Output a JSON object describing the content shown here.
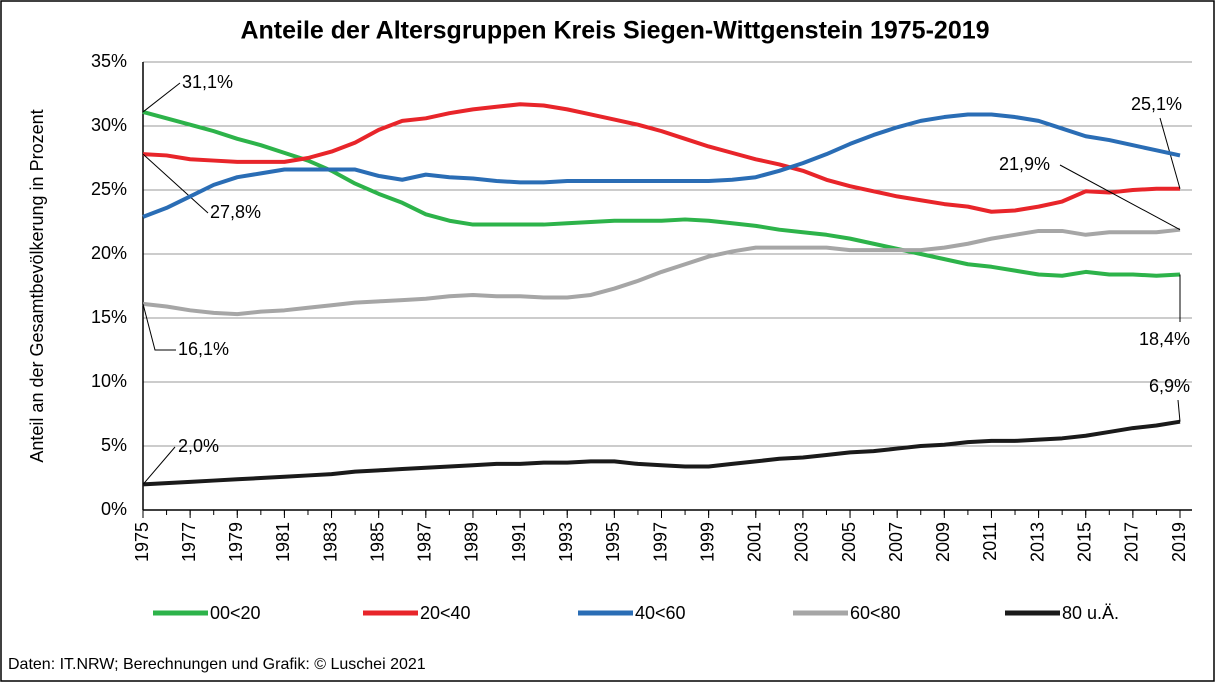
{
  "chart_data": {
    "type": "line",
    "title": "Anteile der Altersgruppen Kreis Siegen-Wittgenstein 1975-2019",
    "y_label": "Anteil an der Gesamtbevölkerung in Prozent",
    "source": "Daten: IT.NRW; Berechnungen und Grafik: © Luschei 2021",
    "x": [
      1975,
      1976,
      1977,
      1978,
      1979,
      1980,
      1981,
      1982,
      1983,
      1984,
      1985,
      1986,
      1987,
      1988,
      1989,
      1990,
      1991,
      1992,
      1993,
      1994,
      1995,
      1996,
      1997,
      1998,
      1999,
      2000,
      2001,
      2002,
      2003,
      2004,
      2005,
      2006,
      2007,
      2008,
      2009,
      2010,
      2011,
      2012,
      2013,
      2014,
      2015,
      2016,
      2017,
      2018,
      2019
    ],
    "xlim": [
      1975,
      2019
    ],
    "xticks": [
      1975,
      1977,
      1979,
      1981,
      1983,
      1985,
      1987,
      1989,
      1991,
      1993,
      1995,
      1997,
      1999,
      2001,
      2003,
      2005,
      2007,
      2009,
      2011,
      2013,
      2015,
      2017,
      2019
    ],
    "ylim": [
      0,
      35
    ],
    "yticks": [
      {
        "value": 0,
        "label": "0%"
      },
      {
        "value": 5,
        "label": "5%"
      },
      {
        "value": 10,
        "label": "10%"
      },
      {
        "value": 15,
        "label": "15%"
      },
      {
        "value": 20,
        "label": "20%"
      },
      {
        "value": 25,
        "label": "25%"
      },
      {
        "value": 30,
        "label": "30%"
      },
      {
        "value": 35,
        "label": "35%"
      }
    ],
    "grid": true,
    "legend": "bottom",
    "series": [
      {
        "name": "00<20",
        "color": "#2db34a",
        "values": [
          31.1,
          30.6,
          30.1,
          29.6,
          29.0,
          28.5,
          27.9,
          27.3,
          26.5,
          25.5,
          24.7,
          24.0,
          23.1,
          22.6,
          22.3,
          22.3,
          22.3,
          22.3,
          22.4,
          22.5,
          22.6,
          22.6,
          22.6,
          22.7,
          22.6,
          22.4,
          22.2,
          21.9,
          21.7,
          21.5,
          21.2,
          20.8,
          20.4,
          20.0,
          19.6,
          19.2,
          19.0,
          18.7,
          18.4,
          18.3,
          18.6,
          18.4,
          18.4,
          18.3,
          18.4
        ],
        "value_labels": [
          "31,1%",
          null,
          null,
          null,
          null,
          null,
          null,
          null,
          null,
          null,
          null,
          null,
          null,
          null,
          null,
          null,
          null,
          null,
          null,
          null,
          null,
          null,
          null,
          null,
          null,
          null,
          null,
          null,
          null,
          null,
          null,
          null,
          null,
          null,
          null,
          null,
          null,
          null,
          null,
          null,
          null,
          null,
          null,
          null,
          "18,4%"
        ]
      },
      {
        "name": "20<40",
        "color": "#e8252a",
        "values": [
          27.8,
          27.7,
          27.4,
          27.3,
          27.2,
          27.2,
          27.2,
          27.5,
          28.0,
          28.7,
          29.7,
          30.4,
          30.6,
          31.0,
          31.3,
          31.5,
          31.7,
          31.6,
          31.3,
          30.9,
          30.5,
          30.1,
          29.6,
          29.0,
          28.4,
          27.9,
          27.4,
          27.0,
          26.5,
          25.8,
          25.3,
          24.9,
          24.5,
          24.2,
          23.9,
          23.7,
          23.3,
          23.4,
          23.7,
          24.1,
          24.9,
          24.8,
          25.0,
          25.1,
          25.1
        ],
        "value_labels": [
          "27,8%",
          null,
          null,
          null,
          null,
          null,
          null,
          null,
          null,
          null,
          null,
          null,
          null,
          null,
          null,
          null,
          null,
          null,
          null,
          null,
          null,
          null,
          null,
          null,
          null,
          null,
          null,
          null,
          null,
          null,
          null,
          null,
          null,
          null,
          null,
          null,
          null,
          null,
          null,
          null,
          null,
          null,
          null,
          null,
          "25,1%"
        ]
      },
      {
        "name": "40<60",
        "color": "#2a6db5",
        "values": [
          22.9,
          23.6,
          24.5,
          25.4,
          26.0,
          26.3,
          26.6,
          26.6,
          26.6,
          26.6,
          26.1,
          25.8,
          26.2,
          26.0,
          25.9,
          25.7,
          25.6,
          25.6,
          25.7,
          25.7,
          25.7,
          25.7,
          25.7,
          25.7,
          25.7,
          25.8,
          26.0,
          26.5,
          27.1,
          27.8,
          28.6,
          29.3,
          29.9,
          30.4,
          30.7,
          30.9,
          30.9,
          30.7,
          30.4,
          29.8,
          29.2,
          28.9,
          28.5,
          28.1,
          27.7
        ]
      },
      {
        "name": "60<80",
        "color": "#a6a6a6",
        "values": [
          16.1,
          15.9,
          15.6,
          15.4,
          15.3,
          15.5,
          15.6,
          15.8,
          16.0,
          16.2,
          16.3,
          16.4,
          16.5,
          16.7,
          16.8,
          16.7,
          16.7,
          16.6,
          16.6,
          16.8,
          17.3,
          17.9,
          18.6,
          19.2,
          19.8,
          20.2,
          20.5,
          20.5,
          20.5,
          20.5,
          20.3,
          20.3,
          20.3,
          20.3,
          20.5,
          20.8,
          21.2,
          21.5,
          21.8,
          21.8,
          21.5,
          21.7,
          21.7,
          21.7,
          21.9
        ],
        "value_labels": [
          "16,1%",
          null,
          null,
          null,
          null,
          null,
          null,
          null,
          null,
          null,
          null,
          null,
          null,
          null,
          null,
          null,
          null,
          null,
          null,
          null,
          null,
          null,
          null,
          null,
          null,
          null,
          null,
          null,
          null,
          null,
          null,
          null,
          null,
          null,
          null,
          null,
          null,
          null,
          null,
          null,
          null,
          null,
          null,
          null,
          "21,9%"
        ]
      },
      {
        "name": "80 u.Ä.",
        "color": "#1a1a1a",
        "values": [
          2.0,
          2.1,
          2.2,
          2.3,
          2.4,
          2.5,
          2.6,
          2.7,
          2.8,
          3.0,
          3.1,
          3.2,
          3.3,
          3.4,
          3.5,
          3.6,
          3.6,
          3.7,
          3.7,
          3.8,
          3.8,
          3.6,
          3.5,
          3.4,
          3.4,
          3.6,
          3.8,
          4.0,
          4.1,
          4.3,
          4.5,
          4.6,
          4.8,
          5.0,
          5.1,
          5.3,
          5.4,
          5.4,
          5.5,
          5.6,
          5.8,
          6.1,
          6.4,
          6.6,
          6.9
        ],
        "value_labels": [
          "2,0%",
          null,
          null,
          null,
          null,
          null,
          null,
          null,
          null,
          null,
          null,
          null,
          null,
          null,
          null,
          null,
          null,
          null,
          null,
          null,
          null,
          null,
          null,
          null,
          null,
          null,
          null,
          null,
          null,
          null,
          null,
          null,
          null,
          null,
          null,
          null,
          null,
          null,
          null,
          null,
          null,
          null,
          null,
          null,
          "6,9%"
        ]
      }
    ]
  }
}
